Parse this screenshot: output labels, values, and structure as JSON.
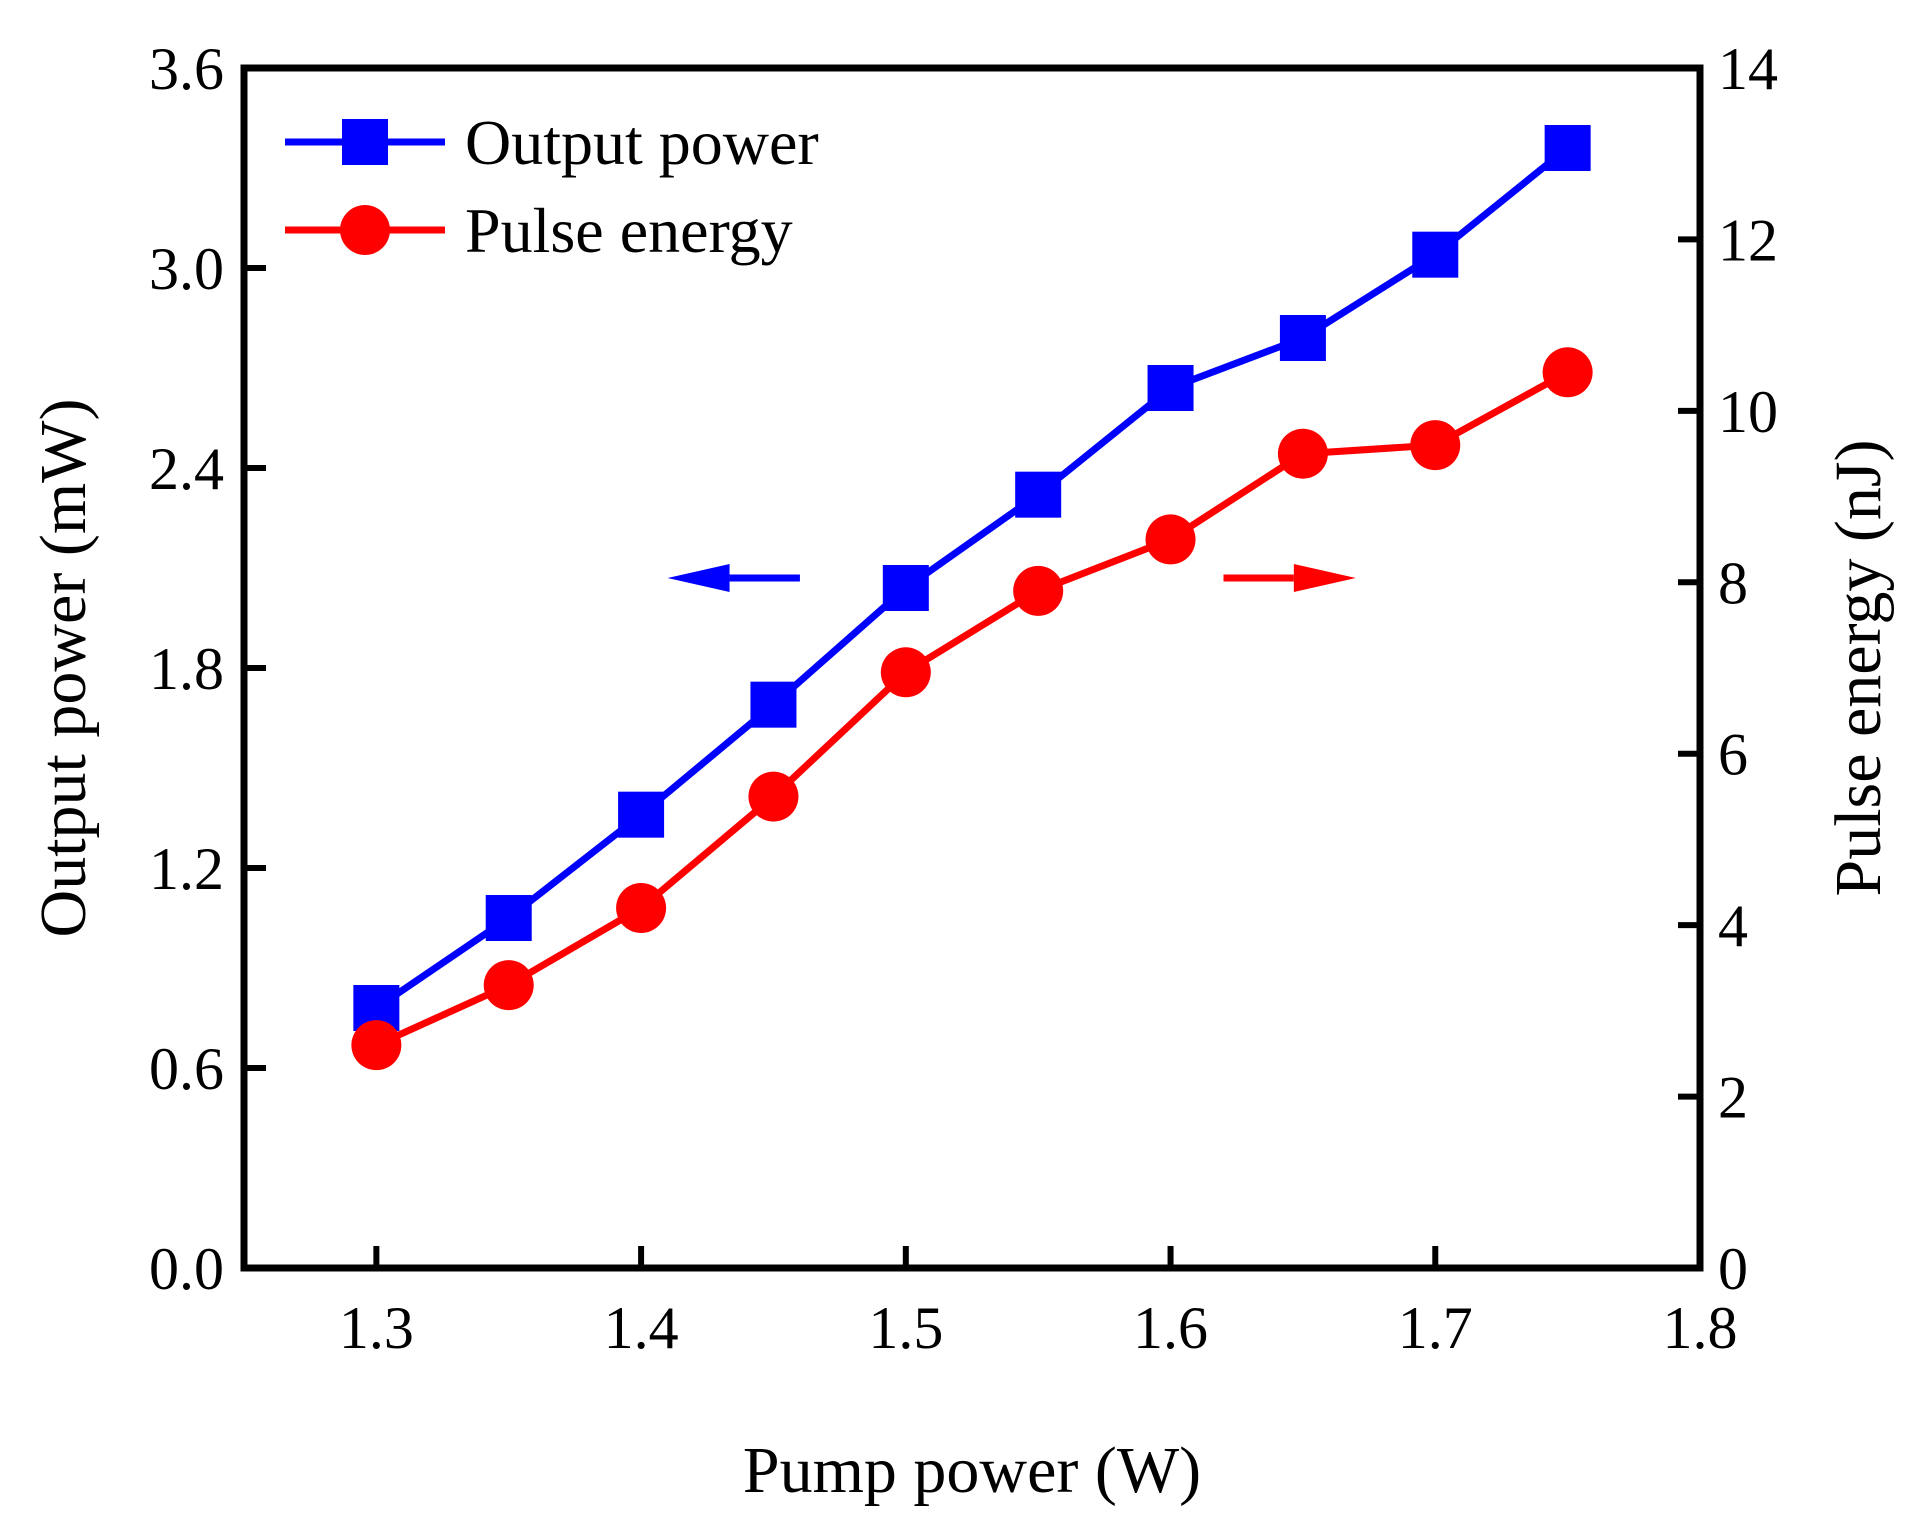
{
  "chart_data": {
    "type": "line",
    "title": "",
    "xlabel": "Pump power (W)",
    "ylabel_left": "Output power (mW)",
    "ylabel_right": "Pulse energy (nJ)",
    "xlim": [
      1.25,
      1.8
    ],
    "ylim_left": [
      0.0,
      3.6
    ],
    "ylim_right": [
      0,
      14
    ],
    "x_ticks": [
      "1.3",
      "1.4",
      "1.5",
      "1.6",
      "1.7",
      "1.8"
    ],
    "y_left_ticks": [
      "0.0",
      "0.6",
      "1.2",
      "1.8",
      "2.4",
      "3.0",
      "3.6"
    ],
    "y_right_ticks": [
      "0",
      "2",
      "4",
      "6",
      "8",
      "10",
      "12",
      "14"
    ],
    "grid": false,
    "legend_position": "top-left",
    "x": [
      1.3,
      1.35,
      1.4,
      1.45,
      1.5,
      1.55,
      1.6,
      1.65,
      1.7,
      1.75
    ],
    "series": [
      {
        "name": "Output power",
        "axis": "left",
        "marker": "square",
        "color": "#0000ff",
        "values": [
          0.78,
          1.05,
          1.36,
          1.69,
          2.04,
          2.32,
          2.64,
          2.79,
          3.04,
          3.36
        ]
      },
      {
        "name": "Pulse energy",
        "axis": "right",
        "marker": "circle",
        "color": "#ff0000",
        "values": [
          2.6,
          3.3,
          4.2,
          5.5,
          6.95,
          7.9,
          8.5,
          9.5,
          9.6,
          10.45
        ]
      }
    ],
    "annotations": [
      {
        "type": "arrow",
        "direction": "left",
        "color": "#0000ff",
        "x_from": 1.46,
        "x_to": 1.41,
        "y_left": 2.07
      },
      {
        "type": "arrow",
        "direction": "right",
        "color": "#ff0000",
        "x_from": 1.62,
        "x_to": 1.67,
        "y_left": 2.07
      }
    ]
  }
}
